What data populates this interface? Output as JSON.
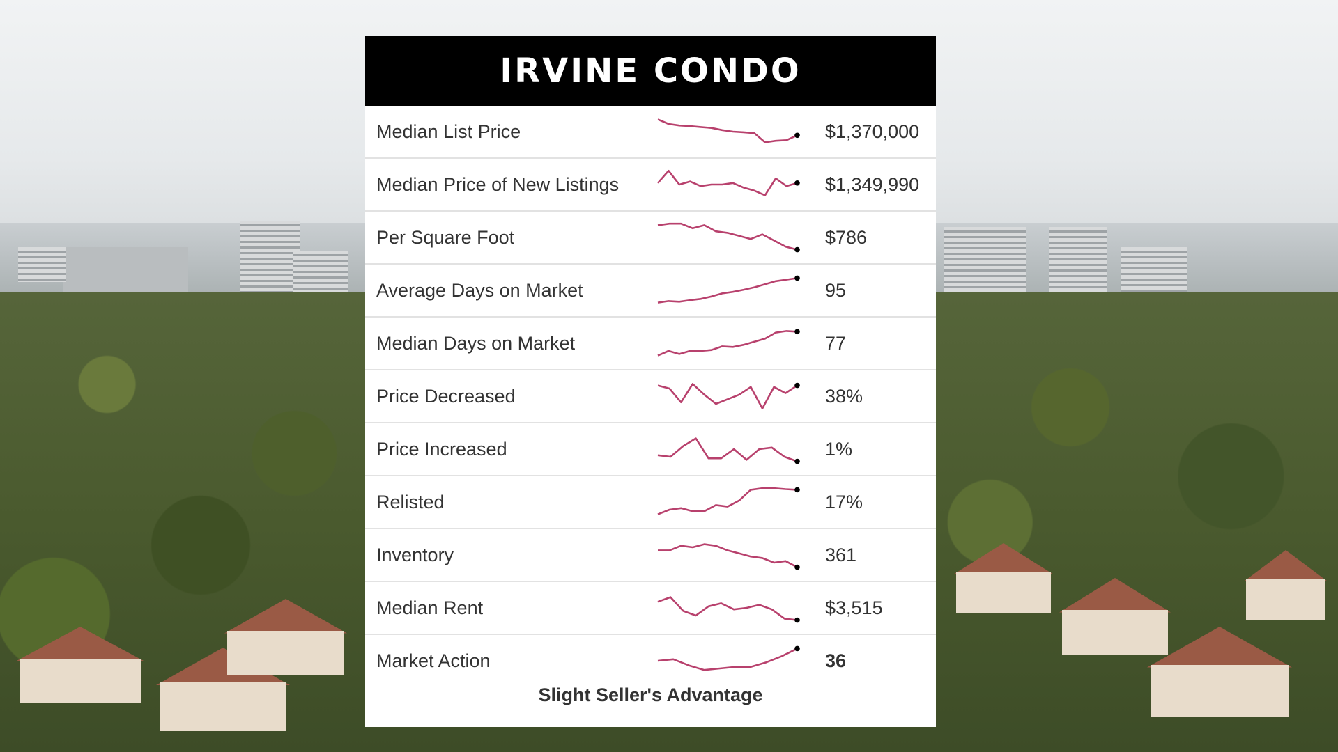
{
  "title": "IRVINE CONDO",
  "rows": [
    {
      "label": "Median List Price",
      "value": "$1,370,000",
      "trend": [
        0.1,
        0.25,
        0.3,
        0.32,
        0.35,
        0.38,
        0.45,
        0.5,
        0.52,
        0.55,
        0.85,
        0.8,
        0.78,
        0.62
      ]
    },
    {
      "label": "Median Price of New Listings",
      "value": "$1,349,990",
      "trend": [
        0.45,
        0.05,
        0.5,
        0.4,
        0.55,
        0.5,
        0.5,
        0.45,
        0.6,
        0.7,
        0.85,
        0.3,
        0.55,
        0.45
      ]
    },
    {
      "label": "Per Square Foot",
      "value": "$786",
      "trend": [
        0.1,
        0.05,
        0.05,
        0.2,
        0.1,
        0.3,
        0.35,
        0.45,
        0.55,
        0.4,
        0.6,
        0.8,
        0.9
      ]
    },
    {
      "label": "Average Days on Market",
      "value": "95",
      "trend": [
        0.9,
        0.85,
        0.87,
        0.82,
        0.78,
        0.7,
        0.6,
        0.55,
        0.48,
        0.4,
        0.3,
        0.2,
        0.15,
        0.1
      ]
    },
    {
      "label": "Median Days on Market",
      "value": "77",
      "trend": [
        0.9,
        0.75,
        0.85,
        0.75,
        0.75,
        0.72,
        0.6,
        0.62,
        0.55,
        0.45,
        0.35,
        0.15,
        0.1,
        0.12
      ]
    },
    {
      "label": "Price Decreased",
      "value": "38%",
      "trend": [
        0.15,
        0.25,
        0.7,
        0.1,
        0.45,
        0.75,
        0.6,
        0.45,
        0.2,
        0.9,
        0.2,
        0.4,
        0.15
      ]
    },
    {
      "label": "Price Increased",
      "value": "1%",
      "trend": [
        0.7,
        0.75,
        0.4,
        0.15,
        0.8,
        0.8,
        0.5,
        0.85,
        0.5,
        0.45,
        0.75,
        0.9
      ]
    },
    {
      "label": "Relisted",
      "value": "17%",
      "trend": [
        0.9,
        0.75,
        0.7,
        0.8,
        0.8,
        0.6,
        0.65,
        0.45,
        0.1,
        0.05,
        0.05,
        0.08,
        0.1
      ]
    },
    {
      "label": "Inventory",
      "value": "361",
      "trend": [
        0.35,
        0.35,
        0.2,
        0.25,
        0.15,
        0.2,
        0.35,
        0.45,
        0.55,
        0.6,
        0.75,
        0.7,
        0.9
      ]
    },
    {
      "label": "Median Rent",
      "value": "$3,515",
      "trend": [
        0.3,
        0.15,
        0.6,
        0.75,
        0.45,
        0.35,
        0.55,
        0.5,
        0.4,
        0.55,
        0.85,
        0.9
      ]
    },
    {
      "label": "Market Action",
      "value": "36",
      "value_bold": true,
      "trend": [
        0.5,
        0.45,
        0.65,
        0.8,
        0.75,
        0.7,
        0.7,
        0.55,
        0.35,
        0.1
      ]
    }
  ],
  "footer_note": "Slight Seller's Advantage",
  "colors": {
    "sparkline": "#b8416d",
    "endpoint": "#000000",
    "header_bg": "#000000"
  }
}
